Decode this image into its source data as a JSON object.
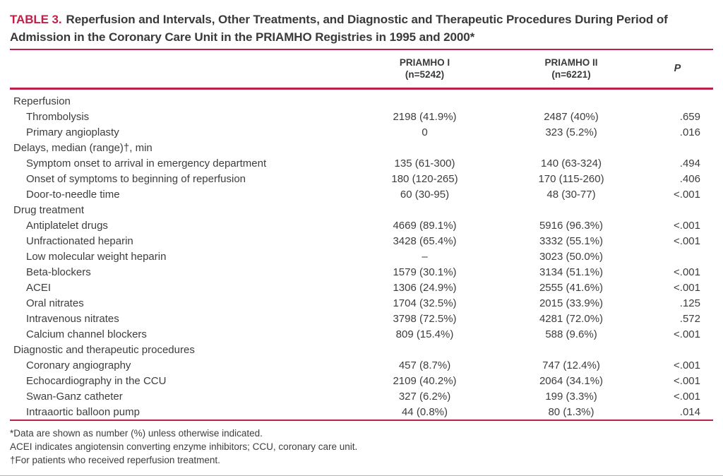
{
  "table": {
    "accent_color": "#be2148",
    "text_color": "#3d3d3d",
    "label": "TABLE 3.",
    "title": "Reperfusion and Intervals, Other Treatments, and Diagnostic and Therapeutic Procedures During Period of Admission in the Coronary Care Unit in the PRIAMHO Registries in 1995 and 2000*",
    "columns": {
      "priamho1_line1": "PRIAMHO I",
      "priamho1_line2": "(n=5242)",
      "priamho2_line1": "PRIAMHO II",
      "priamho2_line2": "(n=6221)",
      "p_label": "P"
    },
    "sections": [
      {
        "header": "Reperfusion",
        "rows": [
          {
            "label": "Thrombolysis",
            "priamho1": "2198 (41.9%)",
            "priamho2": "2487 (40%)",
            "p": ".659"
          },
          {
            "label": "Primary angioplasty",
            "priamho1": "0",
            "priamho2": "323 (5.2%)",
            "p": ".016"
          }
        ]
      },
      {
        "header": "Delays, median (range)†, min",
        "rows": [
          {
            "label": "Symptom onset to arrival in emergency department",
            "priamho1": "135 (61-300)",
            "priamho2": "140 (63-324)",
            "p": ".494"
          },
          {
            "label": "Onset of symptoms to beginning of reperfusion",
            "priamho1": "180 (120-265)",
            "priamho2": "170 (115-260)",
            "p": ".406"
          },
          {
            "label": "Door-to-needle time",
            "priamho1": "60 (30-95)",
            "priamho2": "48 (30-77)",
            "p": "<.001"
          }
        ]
      },
      {
        "header": "Drug treatment",
        "rows": [
          {
            "label": "Antiplatelet drugs",
            "priamho1": "4669 (89.1%)",
            "priamho2": "5916 (96.3%)",
            "p": "<.001"
          },
          {
            "label": "Unfractionated heparin",
            "priamho1": "3428 (65.4%)",
            "priamho2": "3332 (55.1%)",
            "p": "<.001"
          },
          {
            "label": "Low molecular weight heparin",
            "priamho1": "–",
            "priamho2": "3023 (50.0%)",
            "p": ""
          },
          {
            "label": "Beta-blockers",
            "priamho1": "1579 (30.1%)",
            "priamho2": "3134 (51.1%)",
            "p": "<.001"
          },
          {
            "label": "ACEI",
            "priamho1": "1306 (24.9%)",
            "priamho2": "2555 (41.6%)",
            "p": "<.001"
          },
          {
            "label": "Oral nitrates",
            "priamho1": "1704 (32.5%)",
            "priamho2": "2015 (33.9%)",
            "p": ".125"
          },
          {
            "label": "Intravenous nitrates",
            "priamho1": "3798 (72.5%)",
            "priamho2": "4281 (72.0%)",
            "p": ".572"
          },
          {
            "label": "Calcium channel blockers",
            "priamho1": "809 (15.4%)",
            "priamho2": "588 (9.6%)",
            "p": "<.001"
          }
        ]
      },
      {
        "header": "Diagnostic and therapeutic procedures",
        "rows": [
          {
            "label": "Coronary angiography",
            "priamho1": "457 (8.7%)",
            "priamho2": "747 (12.4%)",
            "p": "<.001"
          },
          {
            "label": "Echocardiography in the CCU",
            "priamho1": "2109 (40.2%)",
            "priamho2": "2064 (34.1%)",
            "p": "<.001"
          },
          {
            "label": "Swan-Ganz catheter",
            "priamho1": "327 (6.2%)",
            "priamho2": "199 (3.3%)",
            "p": "<.001"
          },
          {
            "label": "Intraaortic balloon pump",
            "priamho1": "44 (0.8%)",
            "priamho2": "80 (1.3%)",
            "p": ".014"
          }
        ]
      }
    ],
    "footnotes": [
      "*Data are shown as number (%) unless otherwise indicated.",
      "ACEI indicates angiotensin converting enzyme inhibitors; CCU, coronary care unit.",
      "†For patients who received reperfusion treatment."
    ]
  }
}
